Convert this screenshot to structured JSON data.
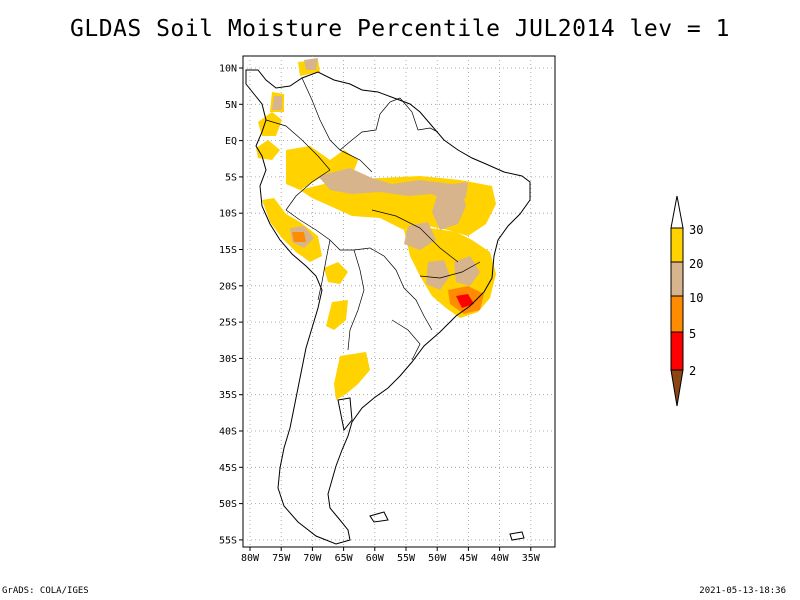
{
  "title": "GLDAS Soil Moisture Percentile JUL2014 lev = 1",
  "footer": {
    "left": "GrADS: COLA/IGES",
    "right": "2021-05-13-18:36"
  },
  "axes": {
    "lat_ticks": [
      "10N",
      "5N",
      "EQ",
      "5S",
      "10S",
      "15S",
      "20S",
      "25S",
      "30S",
      "35S",
      "40S",
      "45S",
      "50S",
      "55S"
    ],
    "lon_ticks": [
      "80W",
      "75W",
      "70W",
      "65W",
      "60W",
      "55W",
      "50W",
      "45W",
      "40W",
      "35W"
    ]
  },
  "legend": {
    "labels": [
      "30",
      "20",
      "10",
      "5",
      "2"
    ],
    "colors": {
      "above30": "#ffffff",
      "20-30": "#ffd200",
      "10-20": "#d7b48c",
      "5-10": "#ff8c00",
      "2-5": "#ff0000",
      "below2": "#8c4614"
    }
  },
  "colors": {
    "coastline": "#000000",
    "grid": "#999999"
  }
}
